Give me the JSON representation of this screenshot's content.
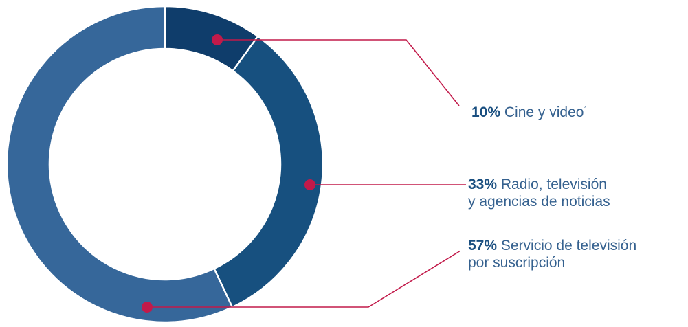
{
  "chart_data": {
    "type": "pie",
    "donut": true,
    "legend": "none",
    "slices": [
      {
        "percent": 10,
        "pct_label": "10%",
        "label": "Cine y video",
        "footnote": "1",
        "color": "#0f3d6b"
      },
      {
        "percent": 33,
        "pct_label": "33%",
        "label_line1": "Radio, televisión",
        "label_line2": "y agencias de noticias",
        "color": "#17507f"
      },
      {
        "percent": 57,
        "pct_label": "57%",
        "label_line1": "Servicio de televisión",
        "label_line2": "por suscripción",
        "color": "#36679a"
      }
    ]
  },
  "colors": {
    "leader": "#c21a4a",
    "text": "#35618f",
    "bold": "#1a4f80"
  }
}
